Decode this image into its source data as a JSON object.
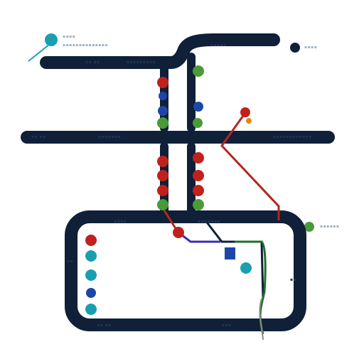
{
  "colors": {
    "track": "#0f2038",
    "red": "#c0211c",
    "teal": "#1a9fb0",
    "blue": "#1d46a8",
    "green": "#4a9a38",
    "navy": "#0f2038",
    "label": "#1e3550",
    "label_light": "#9fb3c8",
    "line_red": "#b5261e",
    "line_blue": "#3a2fb0",
    "line_green": "#1f6e2a",
    "line_gray": "#8a8a8a"
  },
  "legend": [
    {
      "color": "teal",
      "icon": "teal-station-icon",
      "text": ""
    },
    {
      "color": "navy",
      "icon": "navy-station-icon",
      "text": ""
    },
    {
      "color": "green",
      "icon": "green-station-icon",
      "text": ""
    }
  ],
  "stations": [
    {
      "id": "upper-left-1",
      "color": "red"
    },
    {
      "id": "upper-left-2",
      "color": "blue"
    },
    {
      "id": "upper-left-3",
      "color": "blue"
    },
    {
      "id": "upper-left-4",
      "color": "green"
    },
    {
      "id": "upper-right-1",
      "color": "green"
    },
    {
      "id": "upper-right-2",
      "color": "blue"
    },
    {
      "id": "upper-right-3",
      "color": "green"
    },
    {
      "id": "junction-red",
      "color": "red"
    },
    {
      "id": "mid-left-1",
      "color": "red"
    },
    {
      "id": "mid-left-2",
      "color": "red"
    },
    {
      "id": "mid-left-3",
      "color": "red"
    },
    {
      "id": "mid-left-4",
      "color": "green"
    },
    {
      "id": "mid-right-1",
      "color": "red"
    },
    {
      "id": "mid-right-2",
      "color": "red"
    },
    {
      "id": "mid-right-3",
      "color": "red"
    },
    {
      "id": "mid-right-4",
      "color": "green"
    },
    {
      "id": "loop-entry",
      "color": "red"
    },
    {
      "id": "outer-right-green",
      "color": "green"
    },
    {
      "id": "inner-1",
      "color": "red"
    },
    {
      "id": "inner-2",
      "color": "teal"
    },
    {
      "id": "inner-3",
      "color": "teal"
    },
    {
      "id": "inner-4",
      "color": "blue"
    },
    {
      "id": "inner-5",
      "color": "teal"
    },
    {
      "id": "inner-teal-right",
      "color": "teal"
    },
    {
      "id": "inner-square",
      "color": "blue"
    }
  ]
}
